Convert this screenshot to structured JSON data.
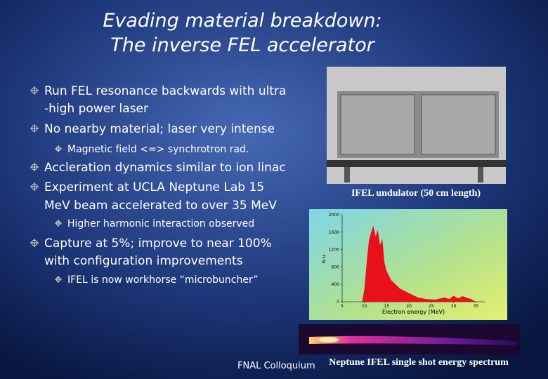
{
  "title": [
    "Evading material breakdown:",
    "The inverse FEL accelerator"
  ],
  "bullets": [
    {
      "lines": [
        "Run FEL resonance backwards with ultra",
        "-high power laser"
      ],
      "sub": []
    },
    {
      "lines": [
        "No nearby material; laser very intense"
      ],
      "sub": [
        "Magnetic field <=> synchrotron rad."
      ]
    },
    {
      "lines": [
        "Accleration dynamics similar to ion linac"
      ],
      "sub": []
    },
    {
      "lines": [
        "Experiment at UCLA Neptune Lab 15",
        "MeV beam accelerated to over 35 MeV"
      ],
      "sub": [
        "Higher harmonic interaction observed"
      ]
    },
    {
      "lines": [
        "Capture at 5%; improve to near 100%",
        "with configuration improvements"
      ],
      "sub": [
        "IFEL is now workhorse “microbuncher”"
      ]
    }
  ],
  "photo_caption": "IFEL undulator (50 cm length)",
  "spectrum_caption": "Neptune IFEL single shot energy spectrum",
  "footer": "FNAL Colloquium",
  "chart_data": {
    "type": "area",
    "xlabel": "Electron energy (MeV)",
    "ylabel": "a.u.",
    "color": "#e8101a",
    "x": [
      9.5,
      10,
      10.5,
      11,
      11.5,
      12,
      12.5,
      13,
      13.5,
      14,
      14.5,
      15,
      15.5,
      16,
      17,
      18,
      19,
      20,
      21,
      22,
      24,
      26,
      28,
      29,
      30,
      31,
      32,
      33,
      34,
      35
    ],
    "values": [
      0,
      300,
      900,
      1400,
      1600,
      1750,
      1500,
      1650,
      1300,
      1450,
      900,
      700,
      600,
      500,
      400,
      300,
      250,
      200,
      150,
      100,
      60,
      50,
      100,
      60,
      140,
      80,
      130,
      90,
      60,
      0
    ],
    "xlim": [
      5,
      37
    ],
    "ylim": [
      0,
      2000
    ],
    "xticks": [
      5,
      10,
      15,
      20,
      25,
      30,
      35
    ],
    "yticks": [
      0,
      400,
      800,
      1200,
      1600,
      2000
    ]
  }
}
